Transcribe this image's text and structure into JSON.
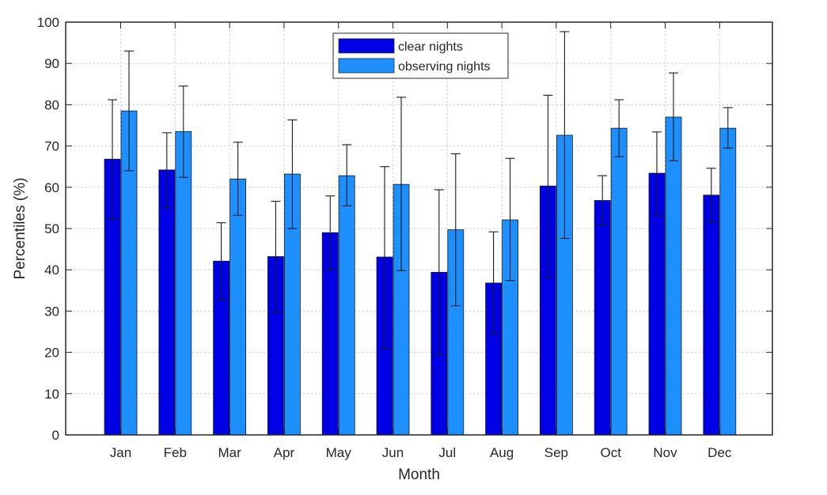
{
  "chart_data": {
    "type": "bar",
    "title": "",
    "xlabel": "Month",
    "ylabel": "Percentiles (%)",
    "ylim": [
      0,
      100
    ],
    "ytick_step": 10,
    "grid": true,
    "legend_position": "top-center",
    "categories": [
      "Jan",
      "Feb",
      "Mar",
      "Apr",
      "May",
      "Jun",
      "Jul",
      "Aug",
      "Sep",
      "Oct",
      "Nov",
      "Dec"
    ],
    "series": [
      {
        "name": "clear nights",
        "color": "#0000e6",
        "values": [
          66.8,
          64.2,
          42.1,
          43.2,
          49.0,
          43.1,
          39.4,
          36.8,
          60.3,
          56.8,
          63.4,
          58.1
        ],
        "err_low": [
          52.2,
          55.1,
          32.8,
          29.6,
          40.0,
          21.0,
          19.4,
          24.5,
          38.2,
          50.8,
          53.2,
          51.6
        ],
        "err_high": [
          81.2,
          73.2,
          51.4,
          56.6,
          57.9,
          65.0,
          59.4,
          49.2,
          82.3,
          62.8,
          73.4,
          64.6
        ]
      },
      {
        "name": "observing nights",
        "color": "#1e8fff",
        "values": [
          78.5,
          73.5,
          62.0,
          63.2,
          62.8,
          60.7,
          49.7,
          52.1,
          72.6,
          74.3,
          77.0,
          74.3
        ],
        "err_low": [
          64.0,
          62.4,
          53.2,
          50.0,
          55.5,
          39.8,
          31.3,
          37.4,
          47.6,
          67.4,
          66.4,
          69.5
        ],
        "err_high": [
          93.0,
          84.5,
          70.9,
          76.3,
          70.3,
          81.8,
          68.1,
          67.0,
          97.7,
          81.2,
          87.7,
          79.3
        ]
      }
    ]
  }
}
